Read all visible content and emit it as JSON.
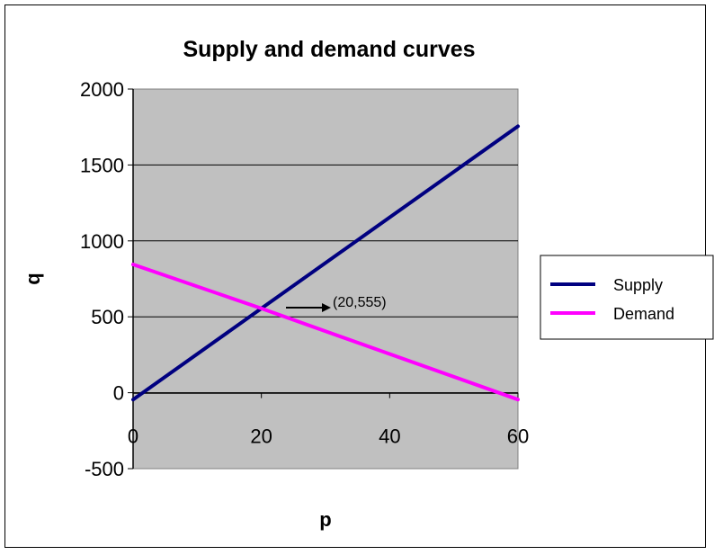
{
  "chart_data": {
    "type": "line",
    "title": "Supply and demand curves",
    "xlabel": "p",
    "ylabel": "q",
    "xlim": [
      0,
      60
    ],
    "ylim": [
      -500,
      2000
    ],
    "x_ticks": [
      0,
      20,
      40,
      60
    ],
    "y_ticks": [
      -500,
      0,
      500,
      1000,
      1500,
      2000
    ],
    "grid": "horizontal",
    "plot_background": "#c0c0c0",
    "legend_position": "right",
    "series": [
      {
        "name": "Supply",
        "color": "#000080",
        "x": [
          0,
          20,
          60
        ],
        "y": [
          -45,
          555,
          1755
        ]
      },
      {
        "name": "Demand",
        "color": "#ff00ff",
        "x": [
          0,
          20,
          60
        ],
        "y": [
          845,
          555,
          -45
        ]
      }
    ],
    "annotations": [
      {
        "text": "(20,555)",
        "x": 20,
        "y": 555
      }
    ]
  }
}
